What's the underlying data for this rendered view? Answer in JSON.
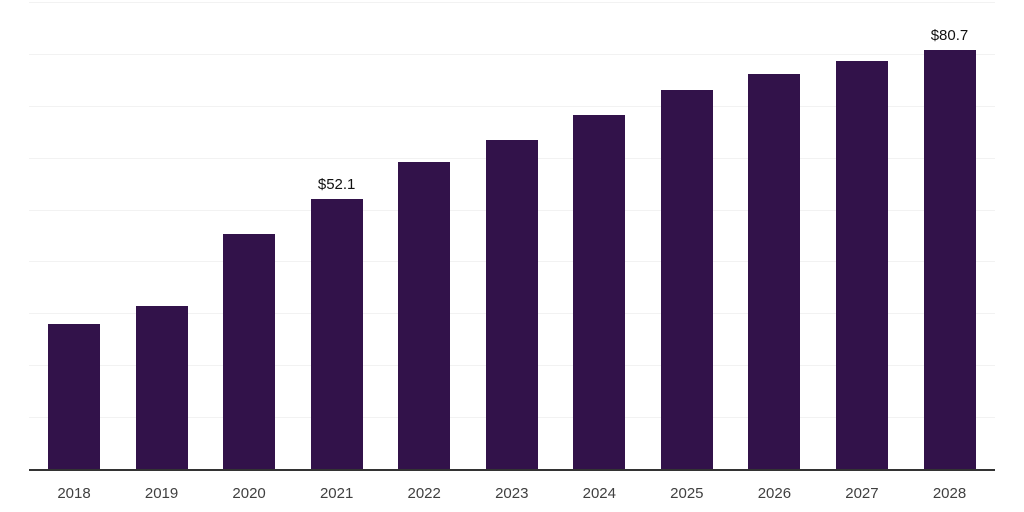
{
  "chart_data": {
    "type": "bar",
    "title": "",
    "xlabel": "",
    "ylabel": "",
    "categories": [
      "2018",
      "2019",
      "2020",
      "2021",
      "2022",
      "2023",
      "2024",
      "2025",
      "2026",
      "2027",
      "2028"
    ],
    "values": [
      28.0,
      31.5,
      45.2,
      52.1,
      59.1,
      63.5,
      68.2,
      73.1,
      76.2,
      78.7,
      80.7
    ],
    "bar_labels": [
      null,
      null,
      null,
      "$52.1",
      null,
      null,
      null,
      null,
      null,
      null,
      "$80.7"
    ],
    "ylim": [
      0,
      90
    ],
    "gridline_step": 10,
    "grid": "horizontal",
    "legend": "none",
    "colors": {
      "bar": "#32124a",
      "gridline": "#f2f2f2",
      "axis_line": "#333333",
      "tick_label": "#404040",
      "value_label": "#111111",
      "background": "#ffffff"
    }
  }
}
